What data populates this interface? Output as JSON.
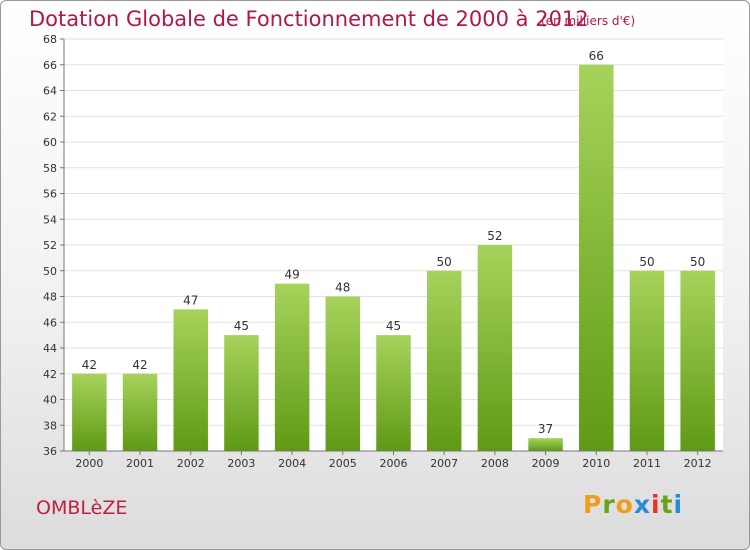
{
  "header": {
    "title": "Dotation Globale de Fonctionnement de 2000 à 2012",
    "unit": "(en milliers d'€)"
  },
  "footer": {
    "commune": "OMBLèZE",
    "logo": [
      "P",
      "r",
      "o",
      "x",
      "i",
      "t",
      "i"
    ]
  },
  "colors": {
    "title": "#b0174a",
    "bar_light": "#a6d35b",
    "bar_dark": "#5f9a14",
    "logo": [
      "#f29b1d",
      "#6aa21c",
      "#f29b1d",
      "#2b8ad6",
      "#e6332a",
      "#6aa21c",
      "#2b8ad6"
    ]
  },
  "chart_data": {
    "type": "bar",
    "title": "Dotation Globale de Fonctionnement de 2000 à 2012",
    "categories": [
      "2000",
      "2001",
      "2002",
      "2003",
      "2004",
      "2005",
      "2006",
      "2007",
      "2008",
      "2009",
      "2010",
      "2011",
      "2012"
    ],
    "values": [
      42,
      42,
      47,
      45,
      49,
      48,
      45,
      50,
      52,
      37,
      66,
      50,
      50
    ],
    "ylim": [
      36,
      68
    ],
    "yticks": [
      36,
      38,
      40,
      42,
      44,
      46,
      48,
      50,
      52,
      54,
      56,
      58,
      60,
      62,
      64,
      66,
      68
    ],
    "grid": true,
    "xlabel": "",
    "ylabel": ""
  }
}
